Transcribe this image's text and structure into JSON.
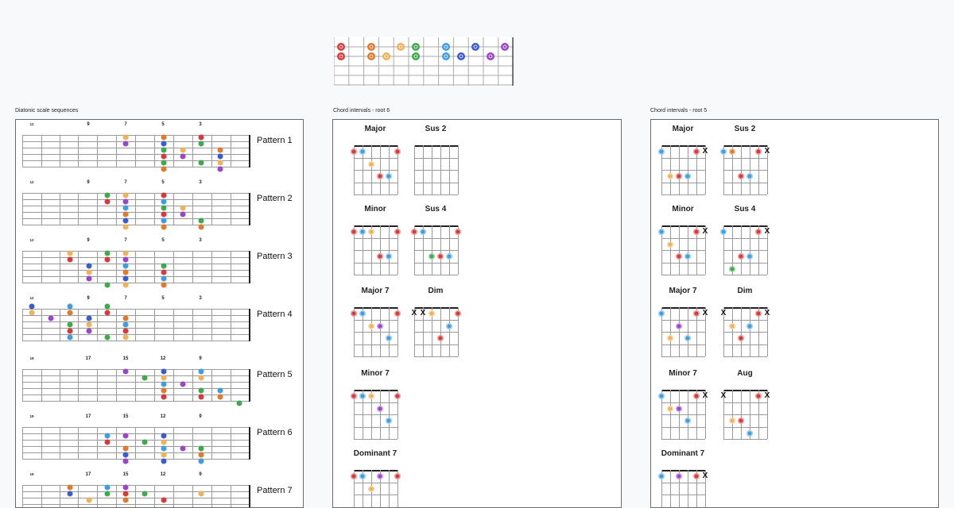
{
  "colors": {
    "red": "#d63b3b",
    "orange": "#e07a2e",
    "yellow": "#f0b15a",
    "green": "#3fa94e",
    "blue": "#3f9de0",
    "navy": "#3b5bd0",
    "purple": "#9b45c9"
  },
  "frames": {
    "diatonic_title": "Diatonic scale sequences",
    "root6_title": "Chord intervals - root 6",
    "root5_title": "Chord intervals - root 5"
  },
  "patterns": [
    {
      "label": "Pattern 1",
      "fret_labels": [
        "12",
        "9",
        "7",
        "5",
        "3"
      ]
    },
    {
      "label": "Pattern 2",
      "fret_labels": [
        "12",
        "9",
        "7",
        "5",
        "3"
      ]
    },
    {
      "label": "Pattern 3",
      "fret_labels": [
        "12",
        "9",
        "7",
        "5",
        "3"
      ]
    },
    {
      "label": "Pattern 4",
      "fret_labels": [
        "12",
        "9",
        "7",
        "5",
        "3"
      ]
    },
    {
      "label": "Pattern 5",
      "fret_labels": [
        "19",
        "17",
        "15",
        "12",
        "9"
      ]
    },
    {
      "label": "Pattern 6",
      "fret_labels": [
        "19",
        "17",
        "15",
        "12",
        "9"
      ]
    },
    {
      "label": "Pattern 7",
      "fret_labels": [
        "19",
        "17",
        "15",
        "12",
        "9"
      ]
    }
  ],
  "root6_chords": [
    "Major",
    "Sus 2",
    "Minor",
    "Sus 4",
    "Major 7",
    "Dim",
    "Minor 7",
    "Dominant 7"
  ],
  "root5_chords": [
    "Major",
    "Sus 2",
    "Minor",
    "Sus 4",
    "Major 7",
    "Dim",
    "Minor 7",
    "Aug",
    "Dominant 7"
  ],
  "mute_symbol": "X"
}
